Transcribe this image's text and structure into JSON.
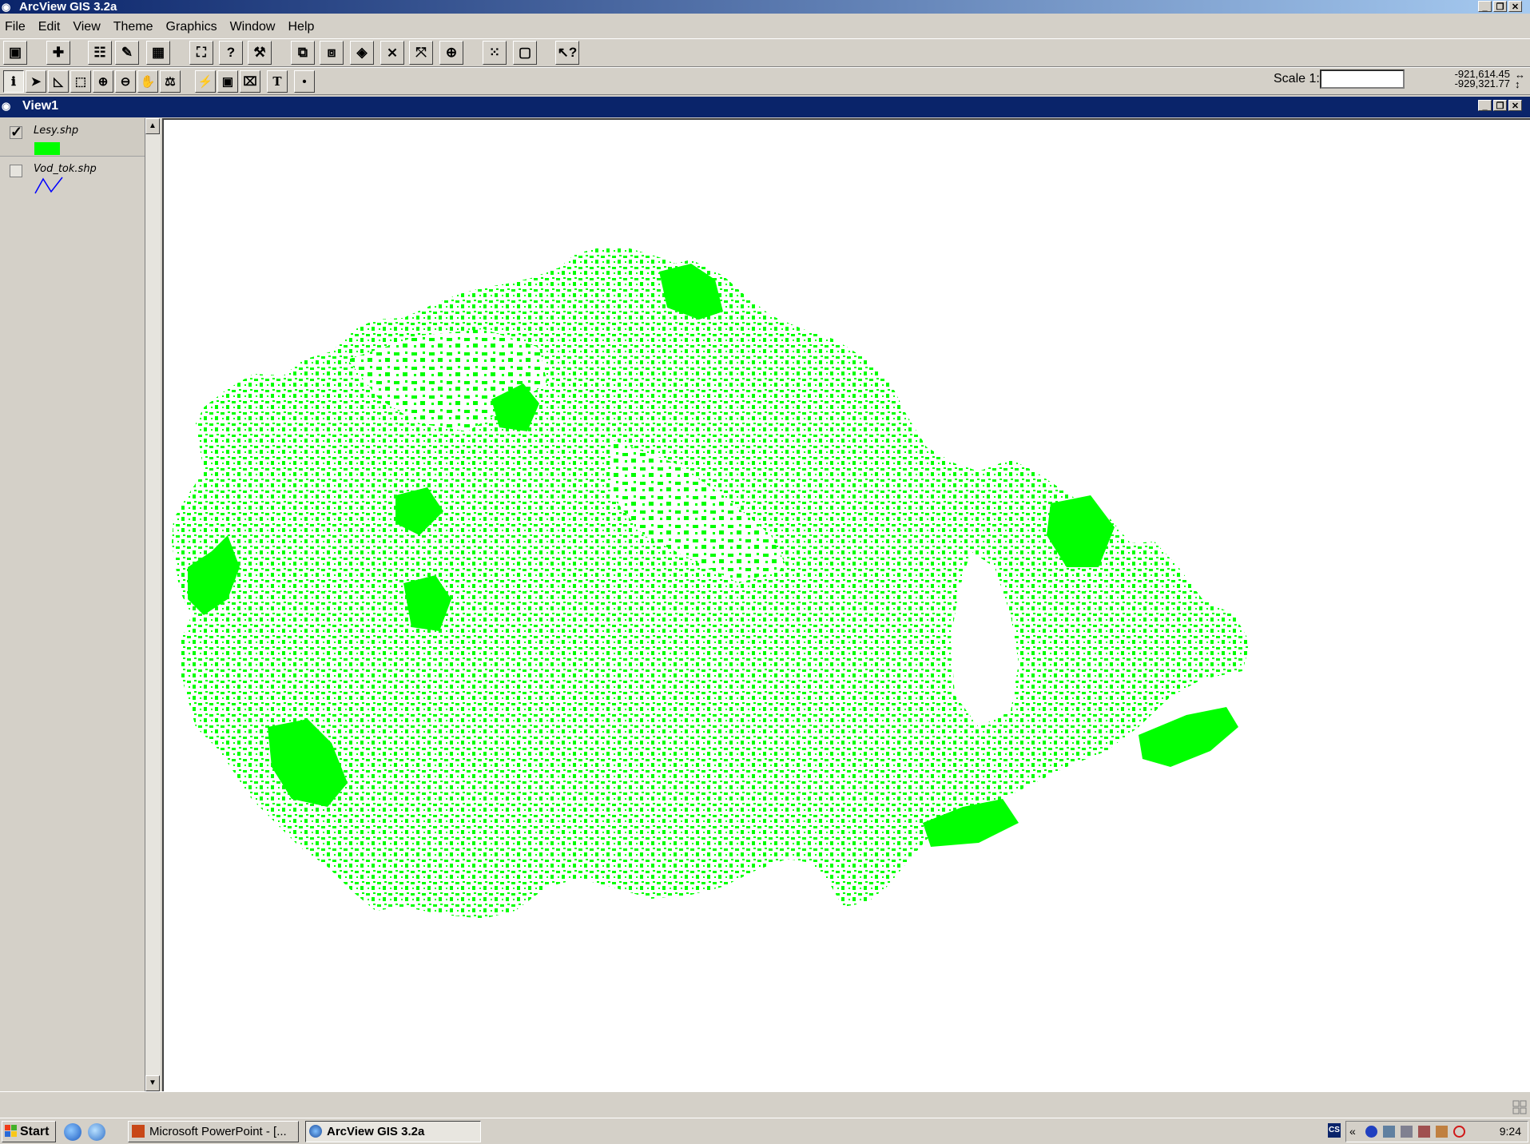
{
  "app": {
    "title": "ArcView GIS 3.2a"
  },
  "menu": [
    "File",
    "Edit",
    "View",
    "Theme",
    "Graphics",
    "Window",
    "Help"
  ],
  "toolbar": {
    "scale_label": "Scale 1:",
    "scale_value": "",
    "coord_x": "-921,614.45",
    "coord_y": "-929,321.77"
  },
  "view": {
    "title": "View1"
  },
  "themes": [
    {
      "name": "Lesy.shp",
      "checked": true,
      "symbol": "polygon",
      "color": "#00ff00"
    },
    {
      "name": "Vod_tok.shp",
      "checked": false,
      "symbol": "line",
      "color": "#0000ff"
    }
  ],
  "taskbar": {
    "start_label": "Start",
    "tasks": [
      {
        "label": "Microsoft PowerPoint - [..."
      },
      {
        "label": "ArcView GIS 3.2a"
      }
    ],
    "lang": "CS",
    "clock": "9:24"
  },
  "colors": {
    "forest_fill": "#00ff00",
    "title_bar": "#0a246a"
  }
}
